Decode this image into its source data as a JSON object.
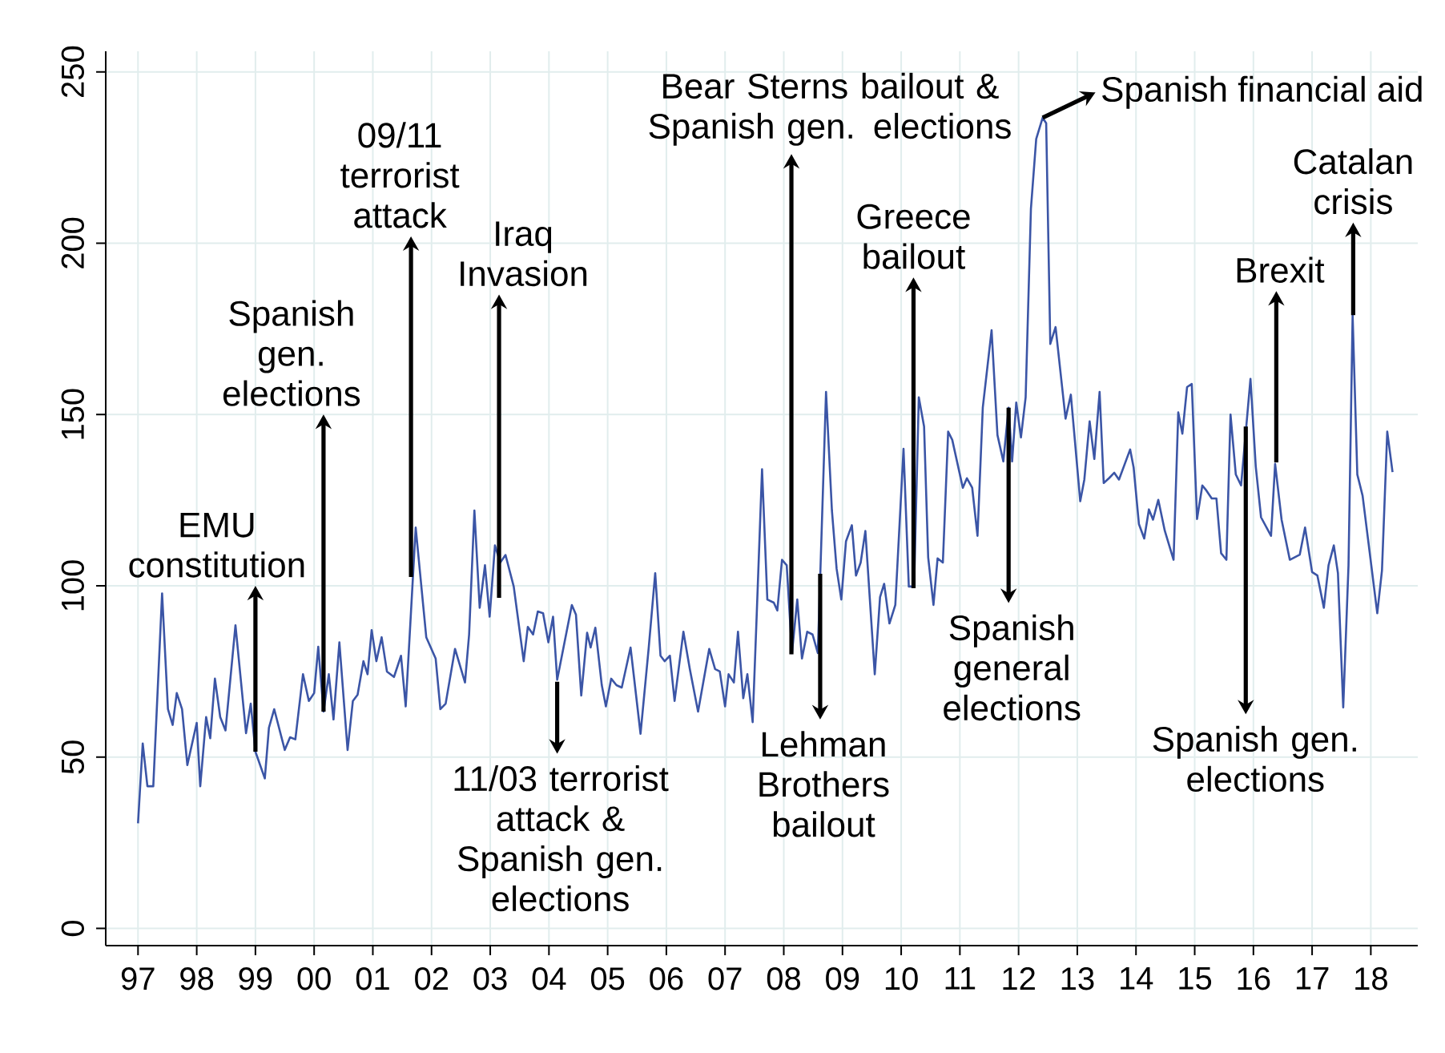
{
  "chart_data": {
    "type": "line",
    "color": "#3b55a6",
    "grid": true,
    "marker": "none",
    "line_style": "solid",
    "xlim": [
      1996.45,
      2018.8
    ],
    "ylim": [
      -5,
      256
    ],
    "xticks": [
      {
        "value": 1997,
        "label": "97"
      },
      {
        "value": 1998,
        "label": "98"
      },
      {
        "value": 1999,
        "label": "99"
      },
      {
        "value": 2000,
        "label": "00"
      },
      {
        "value": 2001,
        "label": "01"
      },
      {
        "value": 2002,
        "label": "02"
      },
      {
        "value": 2003,
        "label": "03"
      },
      {
        "value": 2004,
        "label": "04"
      },
      {
        "value": 2005,
        "label": "05"
      },
      {
        "value": 2006,
        "label": "06"
      },
      {
        "value": 2007,
        "label": "07"
      },
      {
        "value": 2008,
        "label": "08"
      },
      {
        "value": 2009,
        "label": "09"
      },
      {
        "value": 2010,
        "label": "10"
      },
      {
        "value": 2011,
        "label": "11"
      },
      {
        "value": 2012,
        "label": "12"
      },
      {
        "value": 2013,
        "label": "13"
      },
      {
        "value": 2014,
        "label": "14"
      },
      {
        "value": 2015,
        "label": "15"
      },
      {
        "value": 2016,
        "label": "16"
      },
      {
        "value": 2017,
        "label": "17"
      },
      {
        "value": 2018,
        "label": "18"
      }
    ],
    "yticks": [
      0,
      50,
      100,
      150,
      200,
      250
    ],
    "x": [
      1997.0,
      1997.08,
      1997.16,
      1997.26,
      1997.41,
      1997.51,
      1997.59,
      1997.66,
      1997.75,
      1997.84,
      1998.0,
      1998.06,
      1998.16,
      1998.23,
      1998.31,
      1998.4,
      1998.49,
      1998.66,
      1998.84,
      1998.92,
      1999.0,
      1999.16,
      1999.23,
      1999.32,
      1999.5,
      1999.59,
      1999.68,
      1999.81,
      1999.91,
      2000.0,
      2000.07,
      2000.16,
      2000.25,
      2000.33,
      2000.43,
      2000.57,
      2000.66,
      2000.74,
      2000.84,
      2000.91,
      2000.98,
      2001.06,
      2001.15,
      2001.24,
      2001.36,
      2001.48,
      2001.56,
      2001.73,
      2001.91,
      2002.07,
      2002.15,
      2002.24,
      2002.4,
      2002.57,
      2002.64,
      2002.73,
      2002.82,
      2002.91,
      2002.99,
      2003.08,
      2003.17,
      2003.26,
      2003.4,
      2003.57,
      2003.64,
      2003.73,
      2003.81,
      2003.9,
      2003.99,
      2004.07,
      2004.14,
      2004.39,
      2004.46,
      2004.55,
      2004.65,
      2004.71,
      2004.79,
      2004.9,
      2004.97,
      2005.06,
      2005.15,
      2005.24,
      2005.39,
      2005.56,
      2005.7,
      2005.81,
      2005.9,
      2005.97,
      2006.06,
      2006.14,
      2006.29,
      2006.4,
      2006.54,
      2006.73,
      2006.83,
      2006.91,
      2007.0,
      2007.06,
      2007.15,
      2007.22,
      2007.31,
      2007.38,
      2007.47,
      2007.54,
      2007.63,
      2007.72,
      2007.83,
      2007.89,
      2007.97,
      2008.05,
      2008.14,
      2008.23,
      2008.31,
      2008.4,
      2008.49,
      2008.58,
      2008.72,
      2008.82,
      2008.9,
      2008.98,
      2009.06,
      2009.16,
      2009.23,
      2009.31,
      2009.39,
      2009.55,
      2009.64,
      2009.71,
      2009.8,
      2009.9,
      2010.04,
      2010.13,
      2010.22,
      2010.3,
      2010.39,
      2010.46,
      2010.55,
      2010.62,
      2010.71,
      2010.8,
      2010.87,
      2011.05,
      2011.12,
      2011.21,
      2011.3,
      2011.39,
      2011.54,
      2011.64,
      2011.74,
      2011.83,
      2011.89,
      2011.96,
      2012.04,
      2012.12,
      2012.21,
      2012.3,
      2012.41,
      2012.47,
      2012.54,
      2012.63,
      2012.8,
      2012.89,
      2013.05,
      2013.12,
      2013.21,
      2013.29,
      2013.38,
      2013.45,
      2013.54,
      2013.63,
      2013.71,
      2013.9,
      2013.96,
      2014.05,
      2014.14,
      2014.22,
      2014.29,
      2014.38,
      2014.49,
      2014.64,
      2014.72,
      2014.79,
      2014.87,
      2014.95,
      2015.04,
      2015.13,
      2015.2,
      2015.29,
      2015.37,
      2015.45,
      2015.54,
      2015.61,
      2015.7,
      2015.79,
      2015.95,
      2016.04,
      2016.13,
      2016.3,
      2016.37,
      2016.48,
      2016.62,
      2016.79,
      2016.88,
      2017.0,
      2017.09,
      2017.2,
      2017.28,
      2017.37,
      2017.44,
      2017.53,
      2017.62,
      2017.69,
      2017.77,
      2017.86,
      2018.11,
      2018.19,
      2018.28,
      2018.37
    ],
    "values": [
      30.7,
      54,
      41.5,
      41.5,
      97.8,
      64,
      59.4,
      68.7,
      64,
      47.7,
      60,
      41.5,
      61.7,
      55.5,
      72.9,
      61.7,
      57.8,
      88.5,
      57,
      65.6,
      51.6,
      43.8,
      58.6,
      64,
      52.1,
      55.8,
      55.2,
      74.2,
      66.4,
      68.7,
      82.2,
      63.3,
      74.2,
      61,
      83.5,
      52.1,
      66.4,
      68.2,
      78,
      74.2,
      87.1,
      78,
      85,
      75,
      73.4,
      79.6,
      64.8,
      117,
      85,
      78.8,
      64,
      65.6,
      81.6,
      71.8,
      85.8,
      122,
      93.6,
      106,
      91,
      111.8,
      106.8,
      109,
      99.8,
      78,
      88,
      85.8,
      92.5,
      92,
      83.5,
      91,
      72.6,
      94.4,
      91.6,
      68,
      86.3,
      82,
      87.8,
      71,
      64.8,
      72.9,
      71,
      70.3,
      82,
      56.8,
      82,
      103.7,
      79.6,
      78,
      79.6,
      66.4,
      86.6,
      75.7,
      63.3,
      81.6,
      75.7,
      75,
      64.8,
      74.2,
      71.8,
      86.6,
      67.2,
      74.2,
      60.2,
      92,
      134,
      96,
      95.1,
      92.8,
      107.6,
      106,
      80.4,
      96,
      78.8,
      86.6,
      85.8,
      80.4,
      156.6,
      122,
      105,
      96,
      113,
      117.7,
      103,
      106.8,
      116,
      74.2,
      96.7,
      100.6,
      89,
      94.4,
      140,
      99.8,
      99.8,
      155,
      146.5,
      108.3,
      94.4,
      108,
      106.8,
      145,
      142.6,
      128.6,
      131.4,
      128.6,
      114.6,
      152,
      174.6,
      144,
      136.3,
      152,
      136.3,
      153.5,
      143.3,
      155,
      210,
      230.4,
      236.6,
      235,
      170.6,
      175.5,
      148.8,
      155.8,
      124.7,
      131,
      148,
      137,
      156.6,
      130,
      131.4,
      133,
      131,
      139.8,
      134.5,
      118,
      113.8,
      122.3,
      119.3,
      125.1,
      116.1,
      107.6,
      150.6,
      144.4,
      158,
      158.9,
      119.5,
      129.3,
      127.8,
      125.5,
      125.5,
      109.5,
      107.6,
      150,
      132.5,
      129.3,
      160.4,
      134.8,
      120,
      114.6,
      135.6,
      119.3,
      107.6,
      109.1,
      117,
      104,
      103,
      93.6,
      106,
      111.8,
      103.7,
      64.5,
      106,
      179,
      132.5,
      126.3,
      92,
      104.5,
      145,
      133.2
    ],
    "annotations": [
      {
        "text": "EMU constitution",
        "x": 1999.0,
        "y": 51.6
      },
      {
        "text": "Spanish gen. elections",
        "x": 2000.16,
        "y": 63.3
      },
      {
        "text": "09/11 terrorist attack",
        "x": 2001.65,
        "y": 102.6
      },
      {
        "text": "Iraq Invasion",
        "x": 2003.15,
        "y": 96.5
      },
      {
        "text": "11/03 terrorist attack & Spanish gen. elections",
        "x": 2004.14,
        "y": 72
      },
      {
        "text": "Bear Sterns bailout & Spanish gen. elections",
        "x": 2008.13,
        "y": 80
      },
      {
        "text": "Lehman Brothers bailout",
        "x": 2008.62,
        "y": 103.5
      },
      {
        "text": "Greece bailout",
        "x": 2010.21,
        "y": 99.3
      },
      {
        "text": "Spanish general elections",
        "x": 2011.83,
        "y": 152
      },
      {
        "text": "Spanish financial aid",
        "x": 2012.41,
        "y": 236.6
      },
      {
        "text": "Brexit",
        "x": 2016.39,
        "y": 136
      },
      {
        "text": "Spanish gen. elections",
        "x": 2015.87,
        "y": 146.5
      },
      {
        "text": "Catalan crisis",
        "x": 2017.7,
        "y": 179
      }
    ]
  }
}
